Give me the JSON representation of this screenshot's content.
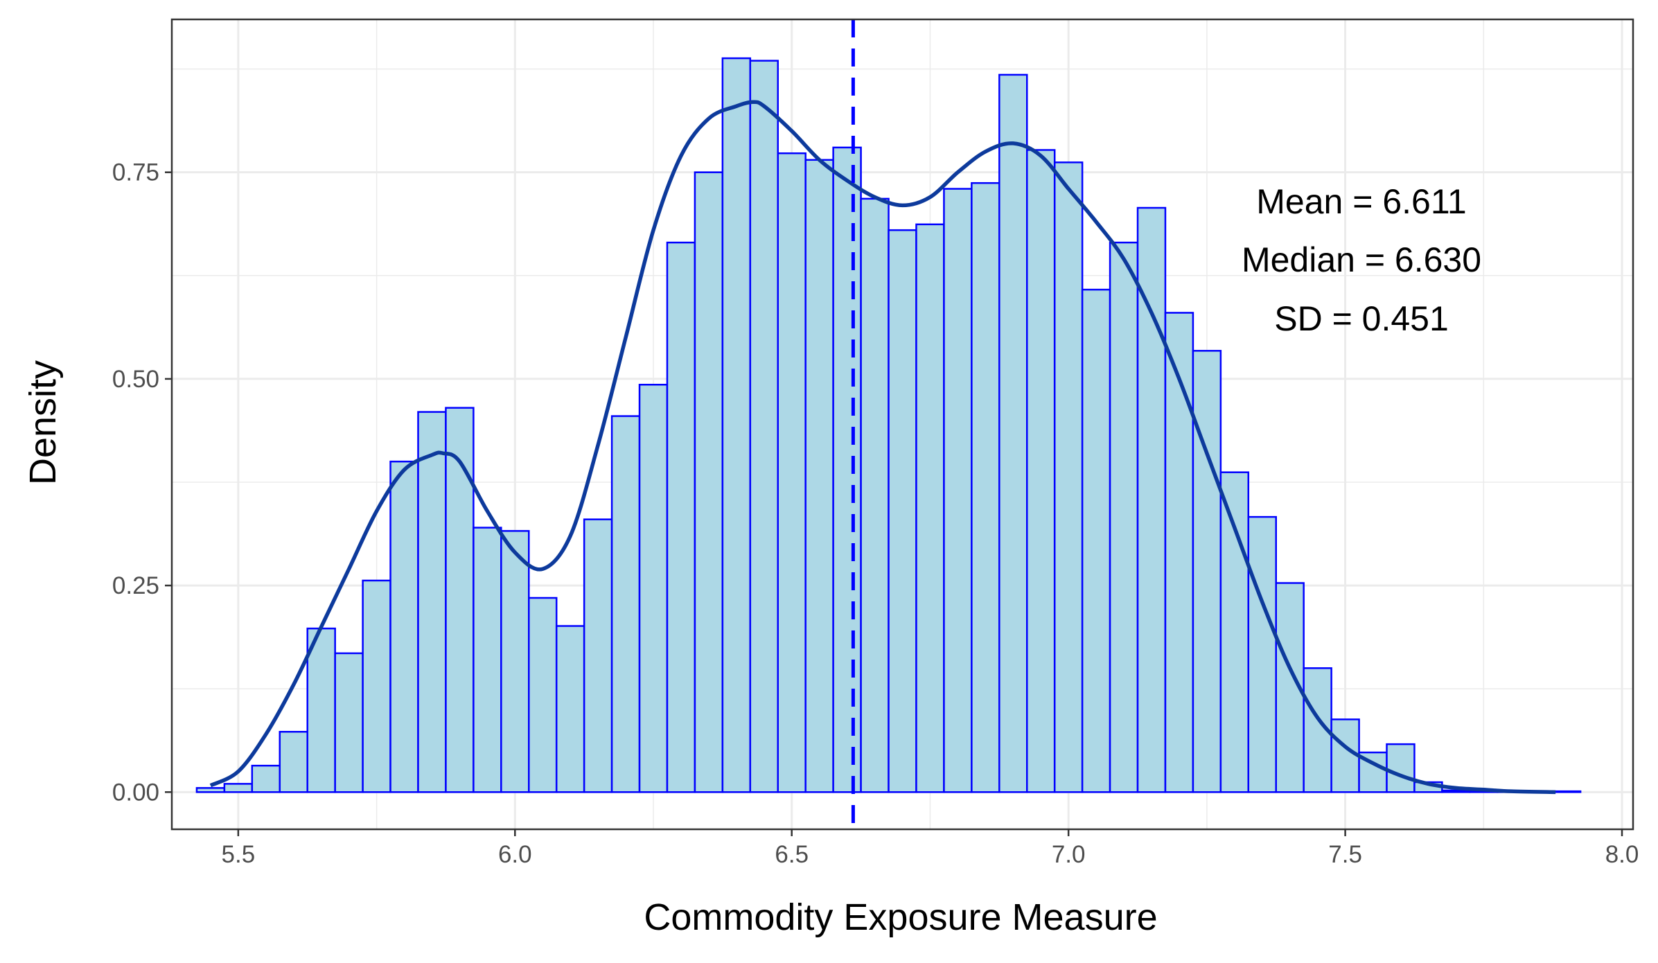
{
  "chart_data": {
    "type": "bar",
    "subtype": "histogram-with-density",
    "xlabel": "Commodity Exposure Measure",
    "ylabel": "Density",
    "xlim": [
      5.38,
      8.02
    ],
    "ylim": [
      -0.045,
      0.935
    ],
    "x_ticks": [
      5.5,
      6.0,
      6.5,
      7.0,
      7.5,
      8.0
    ],
    "x_tick_labels": [
      "5.5",
      "6.0",
      "6.5",
      "7.0",
      "7.5",
      "8.0"
    ],
    "y_ticks": [
      0.0,
      0.25,
      0.5,
      0.75
    ],
    "y_tick_labels": [
      "0.00",
      "0.25",
      "0.50",
      "0.75"
    ],
    "grid": true,
    "bin_start": 5.425,
    "bin_width": 0.05,
    "bin_density": [
      0.005,
      0.01,
      0.032,
      0.073,
      0.198,
      0.168,
      0.256,
      0.4,
      0.46,
      0.465,
      0.32,
      0.316,
      0.235,
      0.201,
      0.33,
      0.455,
      0.493,
      0.665,
      0.75,
      0.888,
      0.885,
      0.773,
      0.765,
      0.78,
      0.718,
      0.68,
      0.687,
      0.73,
      0.737,
      0.868,
      0.777,
      0.762,
      0.608,
      0.665,
      0.707,
      0.58,
      0.534,
      0.387,
      0.333,
      0.253,
      0.15,
      0.088,
      0.048,
      0.058,
      0.012,
      0.002,
      0.001,
      0.001,
      0.001,
      0.001
    ],
    "density_curve": {
      "x": [
        5.45,
        5.5,
        5.55,
        5.6,
        5.65,
        5.7,
        5.75,
        5.8,
        5.85,
        5.87,
        5.9,
        5.95,
        6.0,
        6.05,
        6.1,
        6.15,
        6.2,
        6.25,
        6.3,
        6.35,
        6.4,
        6.43,
        6.45,
        6.5,
        6.55,
        6.6,
        6.65,
        6.7,
        6.75,
        6.8,
        6.85,
        6.9,
        6.95,
        7.0,
        7.05,
        7.1,
        7.15,
        7.2,
        7.25,
        7.3,
        7.35,
        7.4,
        7.45,
        7.5,
        7.55,
        7.6,
        7.65,
        7.7,
        7.75,
        7.8,
        7.88
      ],
      "y": [
        0.008,
        0.025,
        0.07,
        0.13,
        0.2,
        0.27,
        0.34,
        0.39,
        0.408,
        0.41,
        0.4,
        0.34,
        0.29,
        0.27,
        0.31,
        0.42,
        0.55,
        0.68,
        0.77,
        0.815,
        0.83,
        0.835,
        0.83,
        0.8,
        0.765,
        0.74,
        0.72,
        0.71,
        0.72,
        0.75,
        0.775,
        0.785,
        0.77,
        0.73,
        0.69,
        0.645,
        0.58,
        0.5,
        0.41,
        0.32,
        0.23,
        0.15,
        0.09,
        0.055,
        0.035,
        0.02,
        0.01,
        0.005,
        0.003,
        0.001,
        0.0
      ]
    },
    "mean_line_x": 6.611,
    "annotations": [
      "Mean = 6.611",
      "Median = 6.630",
      "SD = 0.451"
    ],
    "colors": {
      "bar_fill": "#add8e6",
      "bar_edge": "#0000ff",
      "density_line": "#0d3a9c",
      "mean_line": "#0000ff",
      "grid": "#ebebeb",
      "panel_border": "#333333"
    }
  }
}
